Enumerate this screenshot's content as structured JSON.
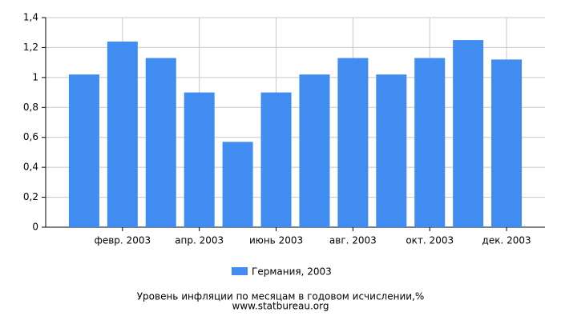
{
  "chart_data": {
    "type": "bar",
    "title": "Уровень инфляции по месяцам в годовом исчислении,%",
    "subtitle": "www.statbureau.org",
    "categories": [
      null,
      "февр. 2003",
      null,
      "апр. 2003",
      null,
      "июнь 2003",
      null,
      "авг. 2003",
      null,
      "окт. 2003",
      null,
      "дек. 2003"
    ],
    "series": [
      {
        "name": "Германия, 2003",
        "color": "#418cf0",
        "values": [
          1.02,
          1.24,
          1.13,
          0.9,
          0.57,
          0.9,
          1.02,
          1.13,
          1.02,
          1.13,
          1.25,
          1.12
        ]
      }
    ],
    "ylim": [
      0,
      1.4
    ],
    "yticks": [
      0,
      {
        "value": 0.2,
        "label": "0,2"
      },
      {
        "value": 0.4,
        "label": "0,4"
      },
      {
        "value": 0.6,
        "label": "0,6"
      },
      {
        "value": 0.8,
        "label": "0,8"
      },
      1,
      {
        "value": 1.2,
        "label": "1,2"
      },
      {
        "value": 1.4,
        "label": "1,4"
      }
    ],
    "grid": true
  }
}
